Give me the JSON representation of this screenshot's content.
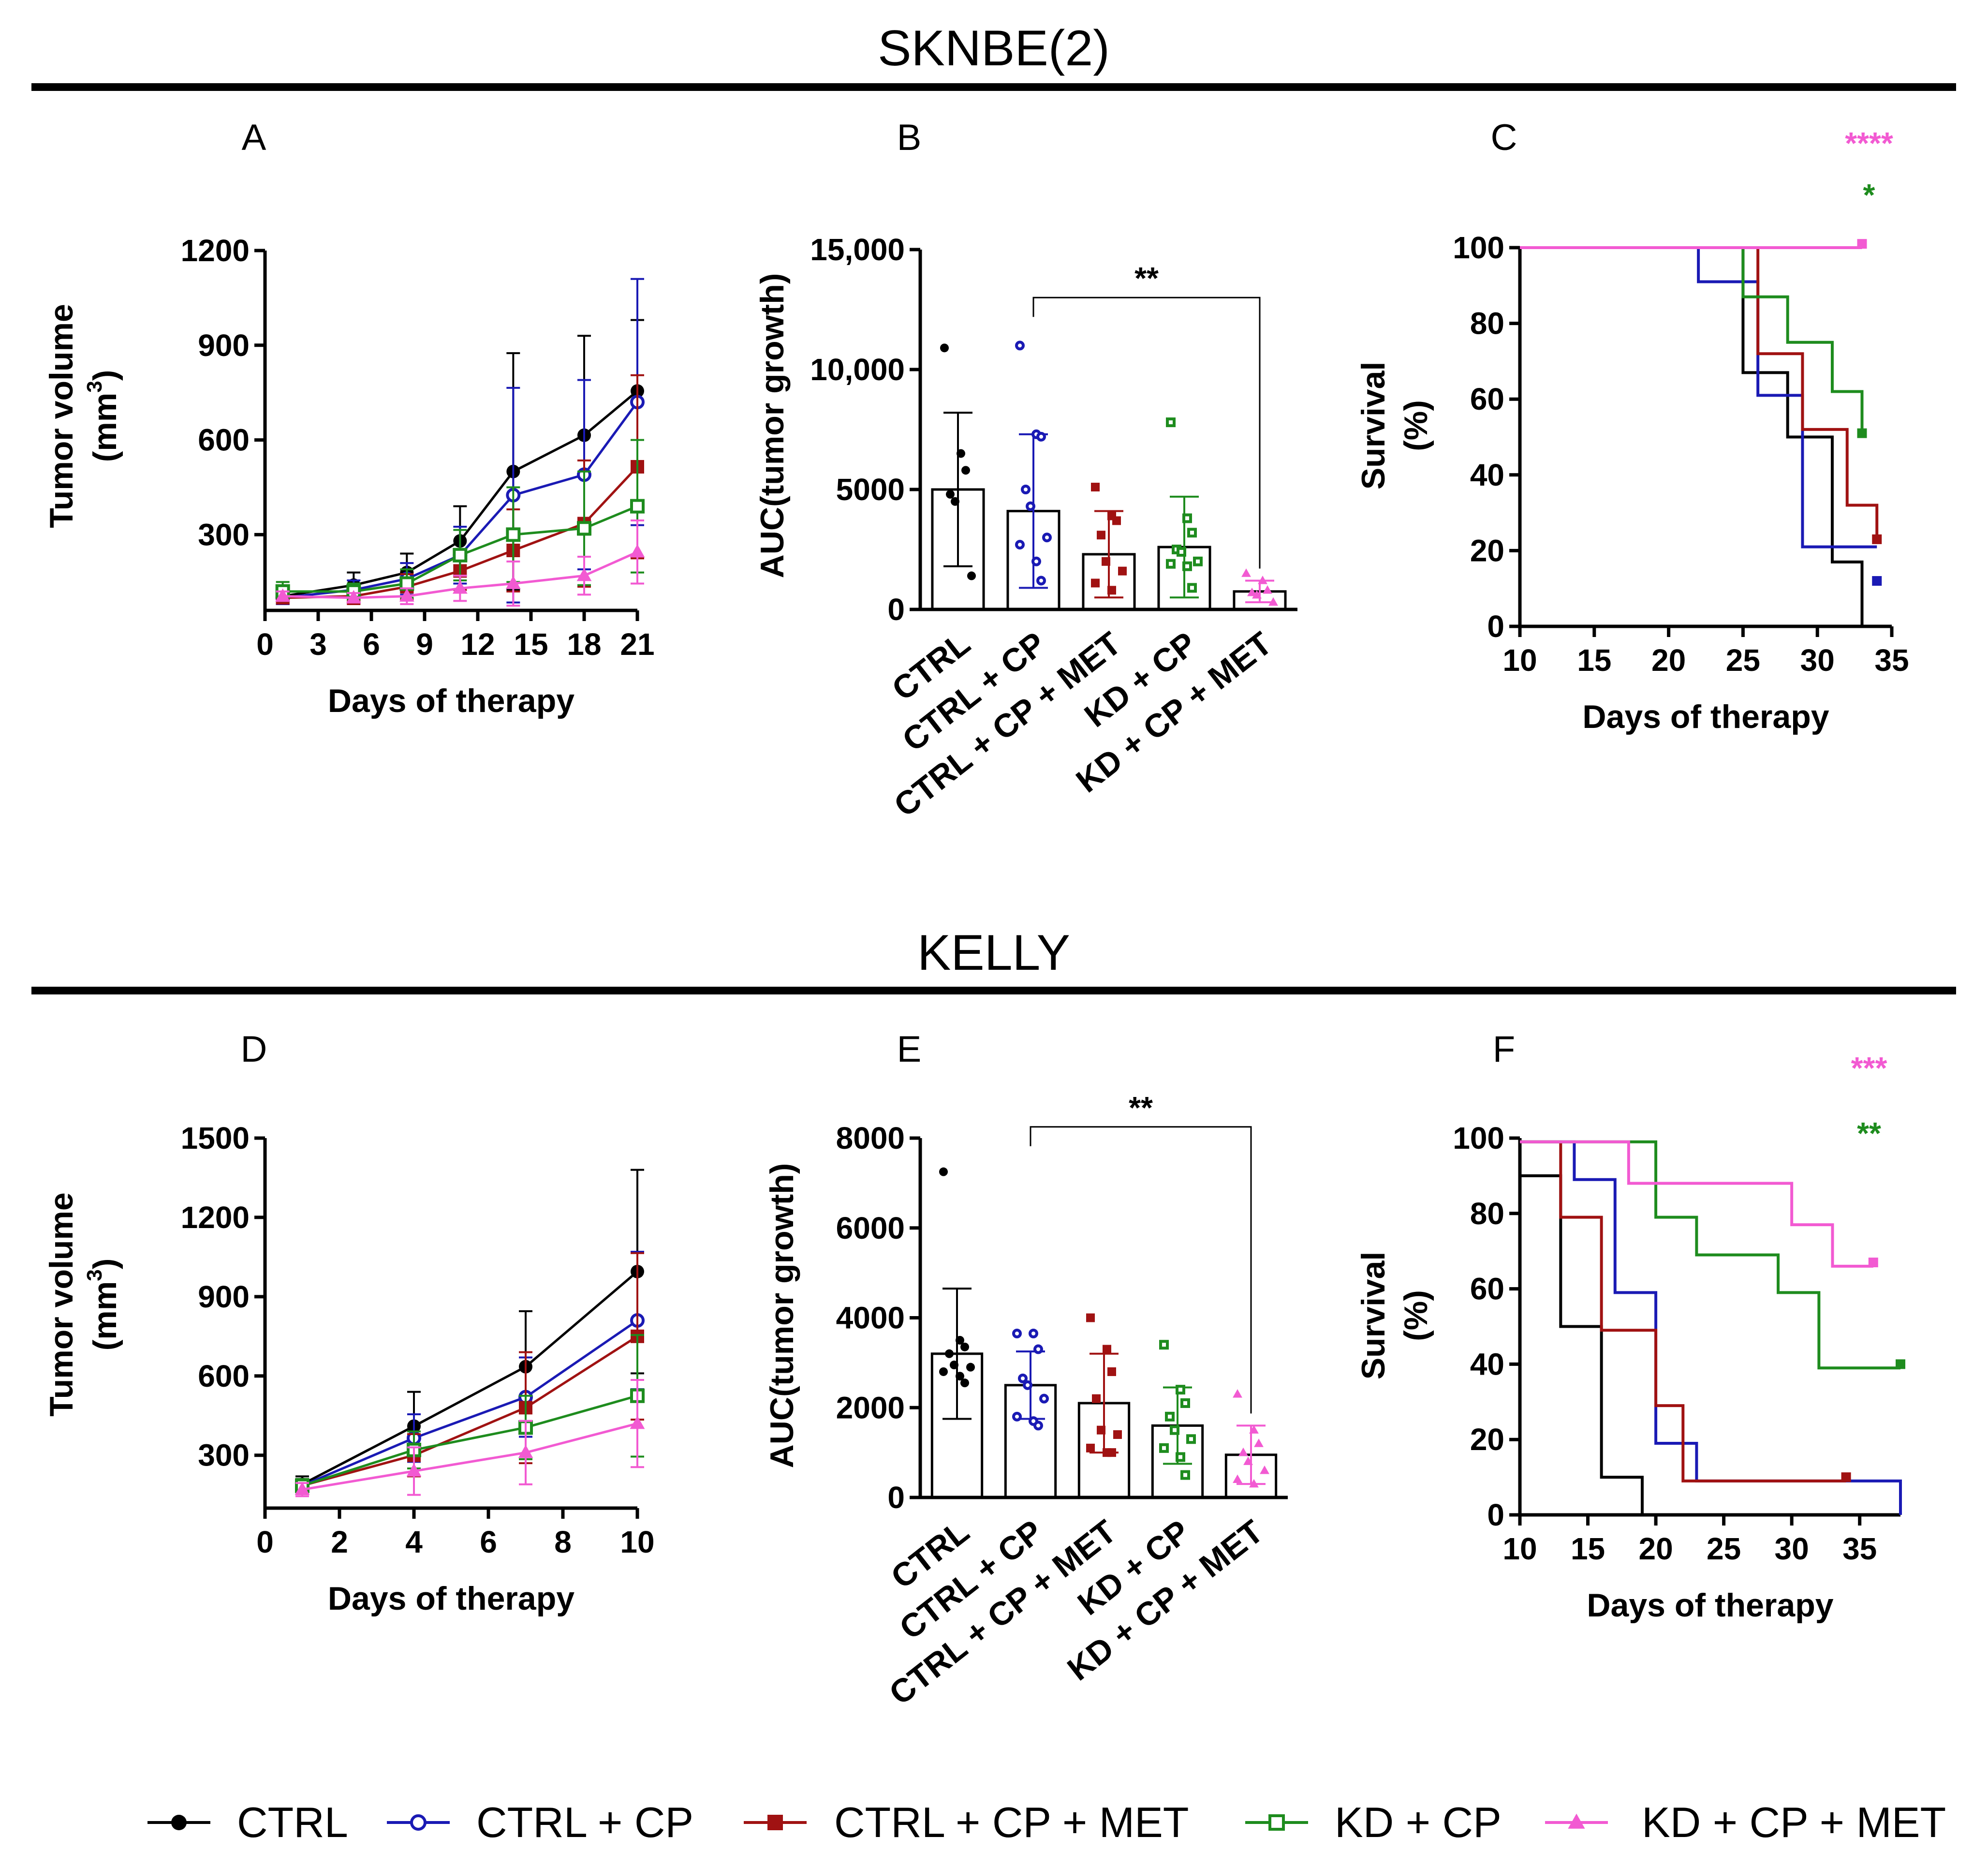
{
  "colors": {
    "CTRL": "#000000",
    "CTRL + CP": "#1a1ab4",
    "CTRL + CP + MET": "#a01212",
    "KD + CP": "#1e8c1e",
    "KD + CP + MET": "#f25ad2"
  },
  "legend": [
    {
      "label": "CTRL",
      "marker": "filled-circle"
    },
    {
      "label": "CTRL + CP",
      "marker": "open-circle"
    },
    {
      "label": "CTRL + CP + MET",
      "marker": "filled-square"
    },
    {
      "label": "KD + CP",
      "marker": "open-square"
    },
    {
      "label": "KD + CP + MET",
      "marker": "filled-triangle"
    }
  ],
  "sections": [
    {
      "title": "SKNBE(2)",
      "panels": [
        "A",
        "B",
        "C"
      ]
    },
    {
      "title": "KELLY",
      "panels": [
        "D",
        "E",
        "F"
      ]
    }
  ],
  "chart_data": [
    {
      "panel": "A",
      "type": "line",
      "xlabel": "Days of therapy",
      "ylabel_line1": "Tumor volume",
      "ylabel_unit": "(mm",
      "ylabel_sup": "3",
      "ylabel_close": ")",
      "xlim": [
        0,
        21
      ],
      "ylim": [
        60,
        1200
      ],
      "xticks": [
        0,
        3,
        6,
        9,
        12,
        15,
        18,
        21
      ],
      "xtick_labels": [
        "0",
        "3",
        "6",
        "9",
        "12",
        "15",
        "18",
        "21"
      ],
      "yticks": [
        300,
        600,
        900,
        1200
      ],
      "ytick_labels": [
        "300",
        "600",
        "900",
        "1200"
      ],
      "series": [
        {
          "name": "CTRL",
          "x": [
            1,
            5,
            8,
            11,
            14,
            18,
            21
          ],
          "y": [
            105,
            140,
            180,
            280,
            500,
            615,
            755
          ],
          "err": [
            25,
            40,
            60,
            110,
            375,
            315,
            225
          ]
        },
        {
          "name": "CTRL + CP",
          "x": [
            1,
            5,
            8,
            11,
            14,
            18,
            21
          ],
          "y": [
            100,
            125,
            160,
            235,
            425,
            490,
            720
          ],
          "err": [
            20,
            30,
            50,
            90,
            340,
            300,
            390
          ]
        },
        {
          "name": "CTRL + CP + MET",
          "x": [
            1,
            5,
            8,
            11,
            14,
            18,
            21
          ],
          "y": [
            100,
            105,
            135,
            185,
            250,
            335,
            515
          ],
          "err": [
            15,
            25,
            40,
            60,
            130,
            200,
            290
          ]
        },
        {
          "name": "KD + CP",
          "x": [
            1,
            5,
            8,
            11,
            14,
            18,
            21
          ],
          "y": [
            120,
            120,
            145,
            235,
            300,
            320,
            390
          ],
          "err": [
            30,
            25,
            45,
            80,
            150,
            180,
            210
          ]
        },
        {
          "name": "KD + CP + MET",
          "x": [
            1,
            5,
            8,
            11,
            14,
            18,
            21
          ],
          "y": [
            105,
            100,
            105,
            130,
            145,
            170,
            245
          ],
          "err": [
            15,
            15,
            25,
            40,
            70,
            60,
            100
          ]
        }
      ]
    },
    {
      "panel": "B",
      "type": "bar",
      "ylabel": "AUC(tumor growth)",
      "categories": [
        "CTRL",
        "CTRL + CP",
        "CTRL + CP + MET",
        "KD + CP",
        "KD + CP + MET"
      ],
      "means": [
        5000,
        4100,
        2300,
        2600,
        750
      ],
      "sd": [
        3200,
        3200,
        1800,
        2100,
        450
      ],
      "points": [
        [
          10900,
          6500,
          5800,
          4800,
          4500,
          1400
        ],
        [
          11000,
          7300,
          7200,
          5000,
          4300,
          3000,
          2700,
          2000,
          1200
        ],
        [
          5100,
          3900,
          3700,
          3100,
          2000,
          1600,
          1100,
          800
        ],
        [
          7800,
          3800,
          3200,
          2500,
          2400,
          2000,
          1900,
          1800,
          900
        ],
        [
          1500,
          1200,
          800,
          700,
          600,
          300
        ]
      ],
      "ylim": [
        0,
        15000
      ],
      "yticks": [
        0,
        5000,
        10000,
        15000
      ],
      "ytick_labels": [
        "0",
        "5000",
        "10,000",
        "15,000"
      ],
      "significance": {
        "from": "CTRL + CP",
        "to": "KD + CP + MET",
        "label": "**",
        "y": 13000
      }
    },
    {
      "panel": "C",
      "type": "line",
      "subtype": "survival-step",
      "xlabel": "Days of therapy",
      "ylabel_line1": "Survival",
      "ylabel_line2": "(%)",
      "xlim": [
        10,
        35
      ],
      "ylim": [
        0,
        100
      ],
      "xticks": [
        10,
        15,
        20,
        25,
        30,
        35
      ],
      "xtick_labels": [
        "10",
        "15",
        "20",
        "25",
        "30",
        "35"
      ],
      "yticks": [
        0,
        20,
        40,
        60,
        80,
        100
      ],
      "ytick_labels": [
        "0",
        "20",
        "40",
        "60",
        "80",
        "100"
      ],
      "series": [
        {
          "name": "CTRL",
          "steps": [
            [
              0,
              100
            ],
            [
              25,
              67
            ],
            [
              28,
              50
            ],
            [
              31,
              17
            ],
            [
              33,
              0
            ]
          ],
          "end": 33,
          "censor": null
        },
        {
          "name": "CTRL + CP",
          "steps": [
            [
              0,
              100
            ],
            [
              22,
              91
            ],
            [
              26,
              61
            ],
            [
              29,
              21
            ]
          ],
          "end": 34,
          "censor": [
            34,
            12
          ]
        },
        {
          "name": "CTRL + CP + MET",
          "steps": [
            [
              0,
              100
            ],
            [
              26,
              72
            ],
            [
              29,
              52
            ],
            [
              32,
              32
            ],
            [
              34,
              23
            ]
          ],
          "end": 34,
          "censor": [
            34,
            23
          ]
        },
        {
          "name": "KD + CP",
          "steps": [
            [
              0,
              100
            ],
            [
              25,
              87
            ],
            [
              28,
              75
            ],
            [
              31,
              62
            ],
            [
              33,
              51
            ]
          ],
          "end": 33,
          "censor": [
            33,
            51
          ]
        },
        {
          "name": "KD + CP + MET",
          "steps": [
            [
              0,
              100
            ]
          ],
          "end": 33,
          "censor": [
            33,
            101
          ]
        }
      ],
      "significance": [
        {
          "label": "****",
          "series": "KD + CP + MET"
        },
        {
          "label": "*",
          "series": "KD + CP"
        }
      ]
    },
    {
      "panel": "D",
      "type": "line",
      "xlabel": "Days of therapy",
      "ylabel_line1": "Tumor volume",
      "ylabel_unit": "(mm",
      "ylabel_sup": "3",
      "ylabel_close": ")",
      "xlim": [
        0,
        10
      ],
      "ylim": [
        100,
        1500
      ],
      "xticks": [
        0,
        2,
        4,
        6,
        8,
        10
      ],
      "xtick_labels": [
        "0",
        "2",
        "4",
        "6",
        "8",
        "10"
      ],
      "yticks": [
        300,
        600,
        900,
        1200,
        1500
      ],
      "ytick_labels": [
        "300",
        "600",
        "900",
        "1200",
        "1500"
      ],
      "series": [
        {
          "name": "CTRL",
          "x": [
            1,
            4,
            7,
            10
          ],
          "y": [
            190,
            410,
            635,
            995
          ],
          "err": [
            30,
            130,
            210,
            385
          ]
        },
        {
          "name": "CTRL + CP",
          "x": [
            1,
            4,
            7,
            10
          ],
          "y": [
            185,
            365,
            520,
            810
          ],
          "err": [
            25,
            90,
            150,
            260
          ]
        },
        {
          "name": "CTRL + CP + MET",
          "x": [
            1,
            4,
            7,
            10
          ],
          "y": [
            185,
            300,
            480,
            750
          ],
          "err": [
            25,
            80,
            210,
            315
          ]
        },
        {
          "name": "KD + CP",
          "x": [
            1,
            4,
            7,
            10
          ],
          "y": [
            185,
            320,
            405,
            525
          ],
          "err": [
            25,
            70,
            120,
            230
          ]
        },
        {
          "name": "KD + CP + MET",
          "x": [
            1,
            4,
            7,
            10
          ],
          "y": [
            170,
            240,
            310,
            420
          ],
          "err": [
            25,
            90,
            120,
            165
          ]
        }
      ]
    },
    {
      "panel": "E",
      "type": "bar",
      "ylabel": "AUC(tumor growth)",
      "categories": [
        "CTRL",
        "CTRL + CP",
        "CTRL + CP + MET",
        "KD + CP",
        "KD + CP + MET"
      ],
      "means": [
        3200,
        2500,
        2100,
        1600,
        950
      ],
      "sd": [
        1450,
        750,
        1100,
        850,
        650
      ],
      "points": [
        [
          7250,
          3500,
          3350,
          3200,
          2950,
          2900,
          2800,
          2700,
          2550
        ],
        [
          3650,
          3650,
          3300,
          2650,
          2500,
          2200,
          1800,
          1700,
          1600
        ],
        [
          4000,
          3300,
          2800,
          2200,
          1500,
          1400,
          1100,
          1000,
          1000
        ],
        [
          3400,
          2400,
          2100,
          1800,
          1500,
          1300,
          1100,
          900,
          500
        ],
        [
          2300,
          1500,
          1200,
          1000,
          800,
          600,
          400,
          300
        ]
      ],
      "ylim": [
        0,
        8000
      ],
      "yticks": [
        0,
        2000,
        4000,
        6000,
        8000
      ],
      "ytick_labels": [
        "0",
        "2000",
        "4000",
        "6000",
        "8000"
      ],
      "significance": {
        "from": "CTRL + CP",
        "to": "KD + CP + MET",
        "label": "**",
        "y": 8250
      }
    },
    {
      "panel": "F",
      "type": "line",
      "subtype": "survival-step",
      "xlabel": "Days of therapy",
      "ylabel_line1": "Survival",
      "ylabel_line2": "(%)",
      "xlim": [
        10,
        38
      ],
      "ylim": [
        0,
        100
      ],
      "xticks": [
        10,
        15,
        20,
        25,
        30,
        35
      ],
      "xtick_labels": [
        "10",
        "15",
        "20",
        "25",
        "30",
        "35"
      ],
      "yticks": [
        0,
        20,
        40,
        60,
        80,
        100
      ],
      "ytick_labels": [
        "0",
        "20",
        "40",
        "60",
        "80",
        "100"
      ],
      "series": [
        {
          "name": "CTRL",
          "steps": [
            [
              0,
              90
            ],
            [
              13,
              50
            ],
            [
              16,
              10
            ],
            [
              19,
              0
            ]
          ],
          "end": 19,
          "censor": null
        },
        {
          "name": "CTRL + CP",
          "steps": [
            [
              0,
              99
            ],
            [
              14,
              89
            ],
            [
              17,
              59
            ],
            [
              20,
              19
            ],
            [
              23,
              9
            ],
            [
              38,
              0
            ]
          ],
          "end": 38,
          "censor": null
        },
        {
          "name": "CTRL + CP + MET",
          "steps": [
            [
              0,
              99
            ],
            [
              13,
              79
            ],
            [
              16,
              49
            ],
            [
              20,
              29
            ],
            [
              22,
              9
            ]
          ],
          "end": 34,
          "censor": [
            34,
            10
          ]
        },
        {
          "name": "KD + CP",
          "steps": [
            [
              0,
              99
            ],
            [
              20,
              79
            ],
            [
              23,
              69
            ],
            [
              29,
              59
            ],
            [
              32,
              39
            ]
          ],
          "end": 38,
          "censor": [
            38,
            40
          ]
        },
        {
          "name": "KD + CP + MET",
          "steps": [
            [
              0,
              99
            ],
            [
              18,
              88
            ],
            [
              30,
              77
            ],
            [
              33,
              66
            ]
          ],
          "end": 36,
          "censor": [
            36,
            67
          ]
        }
      ],
      "significance": [
        {
          "label": "***",
          "series": "KD + CP + MET"
        },
        {
          "label": "**",
          "series": "KD + CP"
        }
      ]
    }
  ]
}
